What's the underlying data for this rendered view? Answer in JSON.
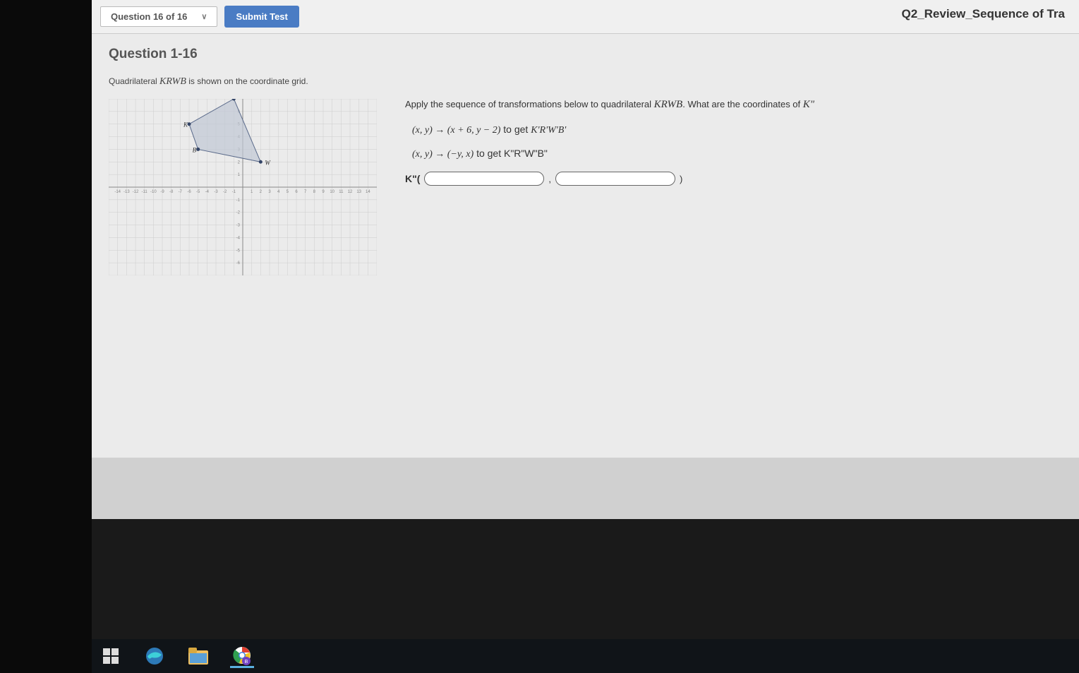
{
  "topbar": {
    "question_nav": "Question 16 of 16",
    "submit_label": "Submit Test",
    "test_title": "Q2_Review_Sequence of Tra"
  },
  "question": {
    "heading": "Question 1-16",
    "intro_prefix": "Quadrilateral ",
    "intro_var": "KRWB",
    "intro_suffix": " is shown on the coordinate grid.",
    "instruction_prefix": "Apply the sequence of transformations below to quadrilateral ",
    "instruction_var": "KRWB",
    "instruction_mid": ".  What are the coordinates of ",
    "instruction_end": "K\"",
    "transform1_math": "(x, y) → (x + 6,  y − 2)",
    "transform1_suffix": " to get ",
    "transform1_result": "K'R'W'B'",
    "transform2_math": "(x, y) → (−y, x)",
    "transform2_suffix": " to get ",
    "transform2_result": "K\"R\"W\"B\"",
    "answer_label": "K\"(",
    "answer_comma": ",",
    "answer_close": ")"
  },
  "graph": {
    "x_min": -15,
    "x_max": 15,
    "y_min": -7,
    "y_max": 7,
    "grid_color": "#cccccc",
    "axis_color": "#888888",
    "axis_label_color": "#888888",
    "axis_label_fontsize": 6,
    "points": {
      "K": {
        "x": -6,
        "y": 5,
        "label": "K"
      },
      "R": {
        "x": -1,
        "y": 7,
        "label": "R"
      },
      "W": {
        "x": 2,
        "y": 2,
        "label": "W"
      },
      "B": {
        "x": -5,
        "y": 3,
        "label": "B"
      }
    },
    "shape_fill": "#c0c8d4",
    "shape_stroke": "#5a6a8a",
    "point_fill": "#334466"
  },
  "taskbar": {
    "icons": [
      "windows-start",
      "edge-browser",
      "file-explorer",
      "chrome-browser"
    ]
  }
}
